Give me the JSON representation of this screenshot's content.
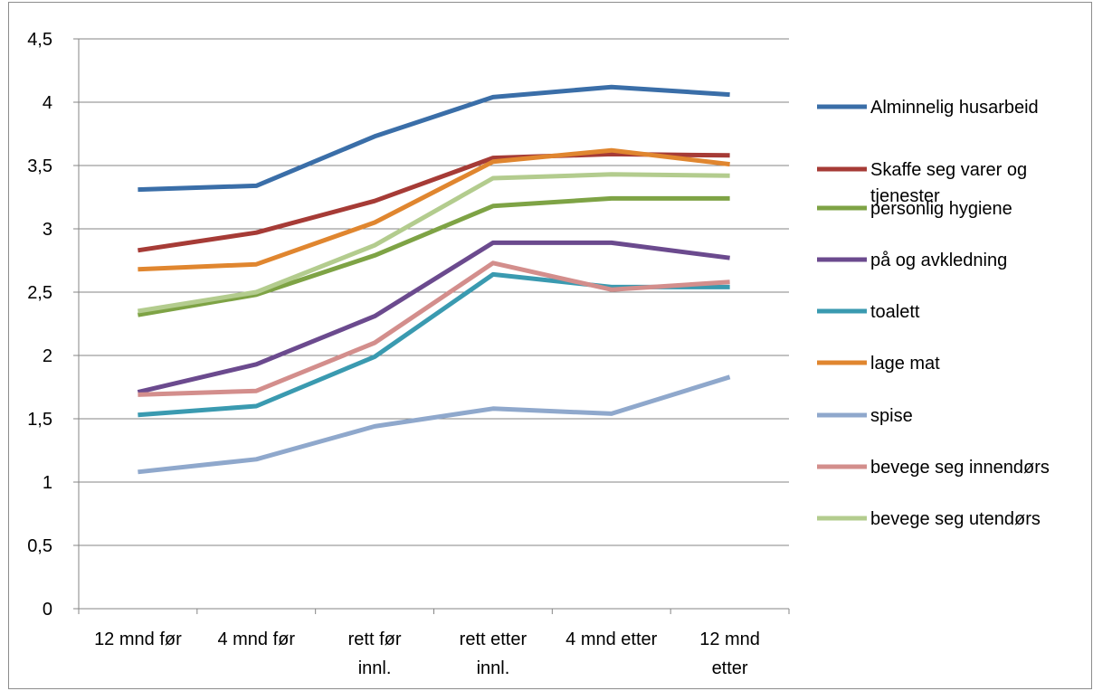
{
  "chart_data": {
    "type": "line",
    "title": "",
    "xlabel": "",
    "ylabel": "",
    "ylim": [
      0,
      4.5
    ],
    "yticks": [
      "0",
      "0,5",
      "1",
      "1,5",
      "2",
      "2,5",
      "3",
      "3,5",
      "4",
      "4,5"
    ],
    "categories": [
      [
        "12 mnd før"
      ],
      [
        "4 mnd før"
      ],
      [
        "rett før",
        "innl."
      ],
      [
        "rett etter",
        "innl."
      ],
      [
        "4 mnd etter"
      ],
      [
        "12 mnd",
        "etter"
      ]
    ],
    "grid": "horizontal",
    "legend_position": "right",
    "series": [
      {
        "name": "Alminnelig husarbeid",
        "name_lines": [
          "Alminnelig husarbeid"
        ],
        "color": "#3A6EA8",
        "values": [
          3.31,
          3.34,
          3.73,
          4.04,
          4.12,
          4.06
        ]
      },
      {
        "name": "Skaffe seg varer og tjenester",
        "name_lines": [
          "Skaffe seg varer og",
          "tjenester"
        ],
        "color": "#A63B36",
        "values": [
          2.83,
          2.97,
          3.22,
          3.56,
          3.59,
          3.58
        ]
      },
      {
        "name": "personlig hygiene",
        "name_lines": [
          "personlig hygiene"
        ],
        "color": "#7EA345",
        "values": [
          2.32,
          2.48,
          2.79,
          3.18,
          3.24,
          3.24
        ]
      },
      {
        "name": "på og avkledning",
        "name_lines": [
          "på og avkledning"
        ],
        "color": "#6B4A8E",
        "values": [
          1.71,
          1.93,
          2.31,
          2.89,
          2.89,
          2.77
        ]
      },
      {
        "name": "toalett",
        "name_lines": [
          "toalett"
        ],
        "color": "#3A9AB0",
        "values": [
          1.53,
          1.6,
          1.99,
          2.64,
          2.54,
          2.54
        ]
      },
      {
        "name": "lage mat",
        "name_lines": [
          "lage mat"
        ],
        "color": "#E0862F",
        "values": [
          2.68,
          2.72,
          3.05,
          3.53,
          3.62,
          3.51
        ]
      },
      {
        "name": "spise",
        "name_lines": [
          "spise"
        ],
        "color": "#8FA8CC",
        "values": [
          1.08,
          1.18,
          1.44,
          1.58,
          1.54,
          1.83
        ]
      },
      {
        "name": "bevege seg innendørs",
        "name_lines": [
          "bevege seg innendørs"
        ],
        "color": "#D38E8C",
        "values": [
          1.69,
          1.72,
          2.1,
          2.73,
          2.52,
          2.58
        ]
      },
      {
        "name": "bevege seg utendørs",
        "name_lines": [
          "bevege seg utendørs"
        ],
        "color": "#B3CC8E",
        "values": [
          2.35,
          2.5,
          2.87,
          3.4,
          3.43,
          3.42
        ]
      }
    ]
  }
}
